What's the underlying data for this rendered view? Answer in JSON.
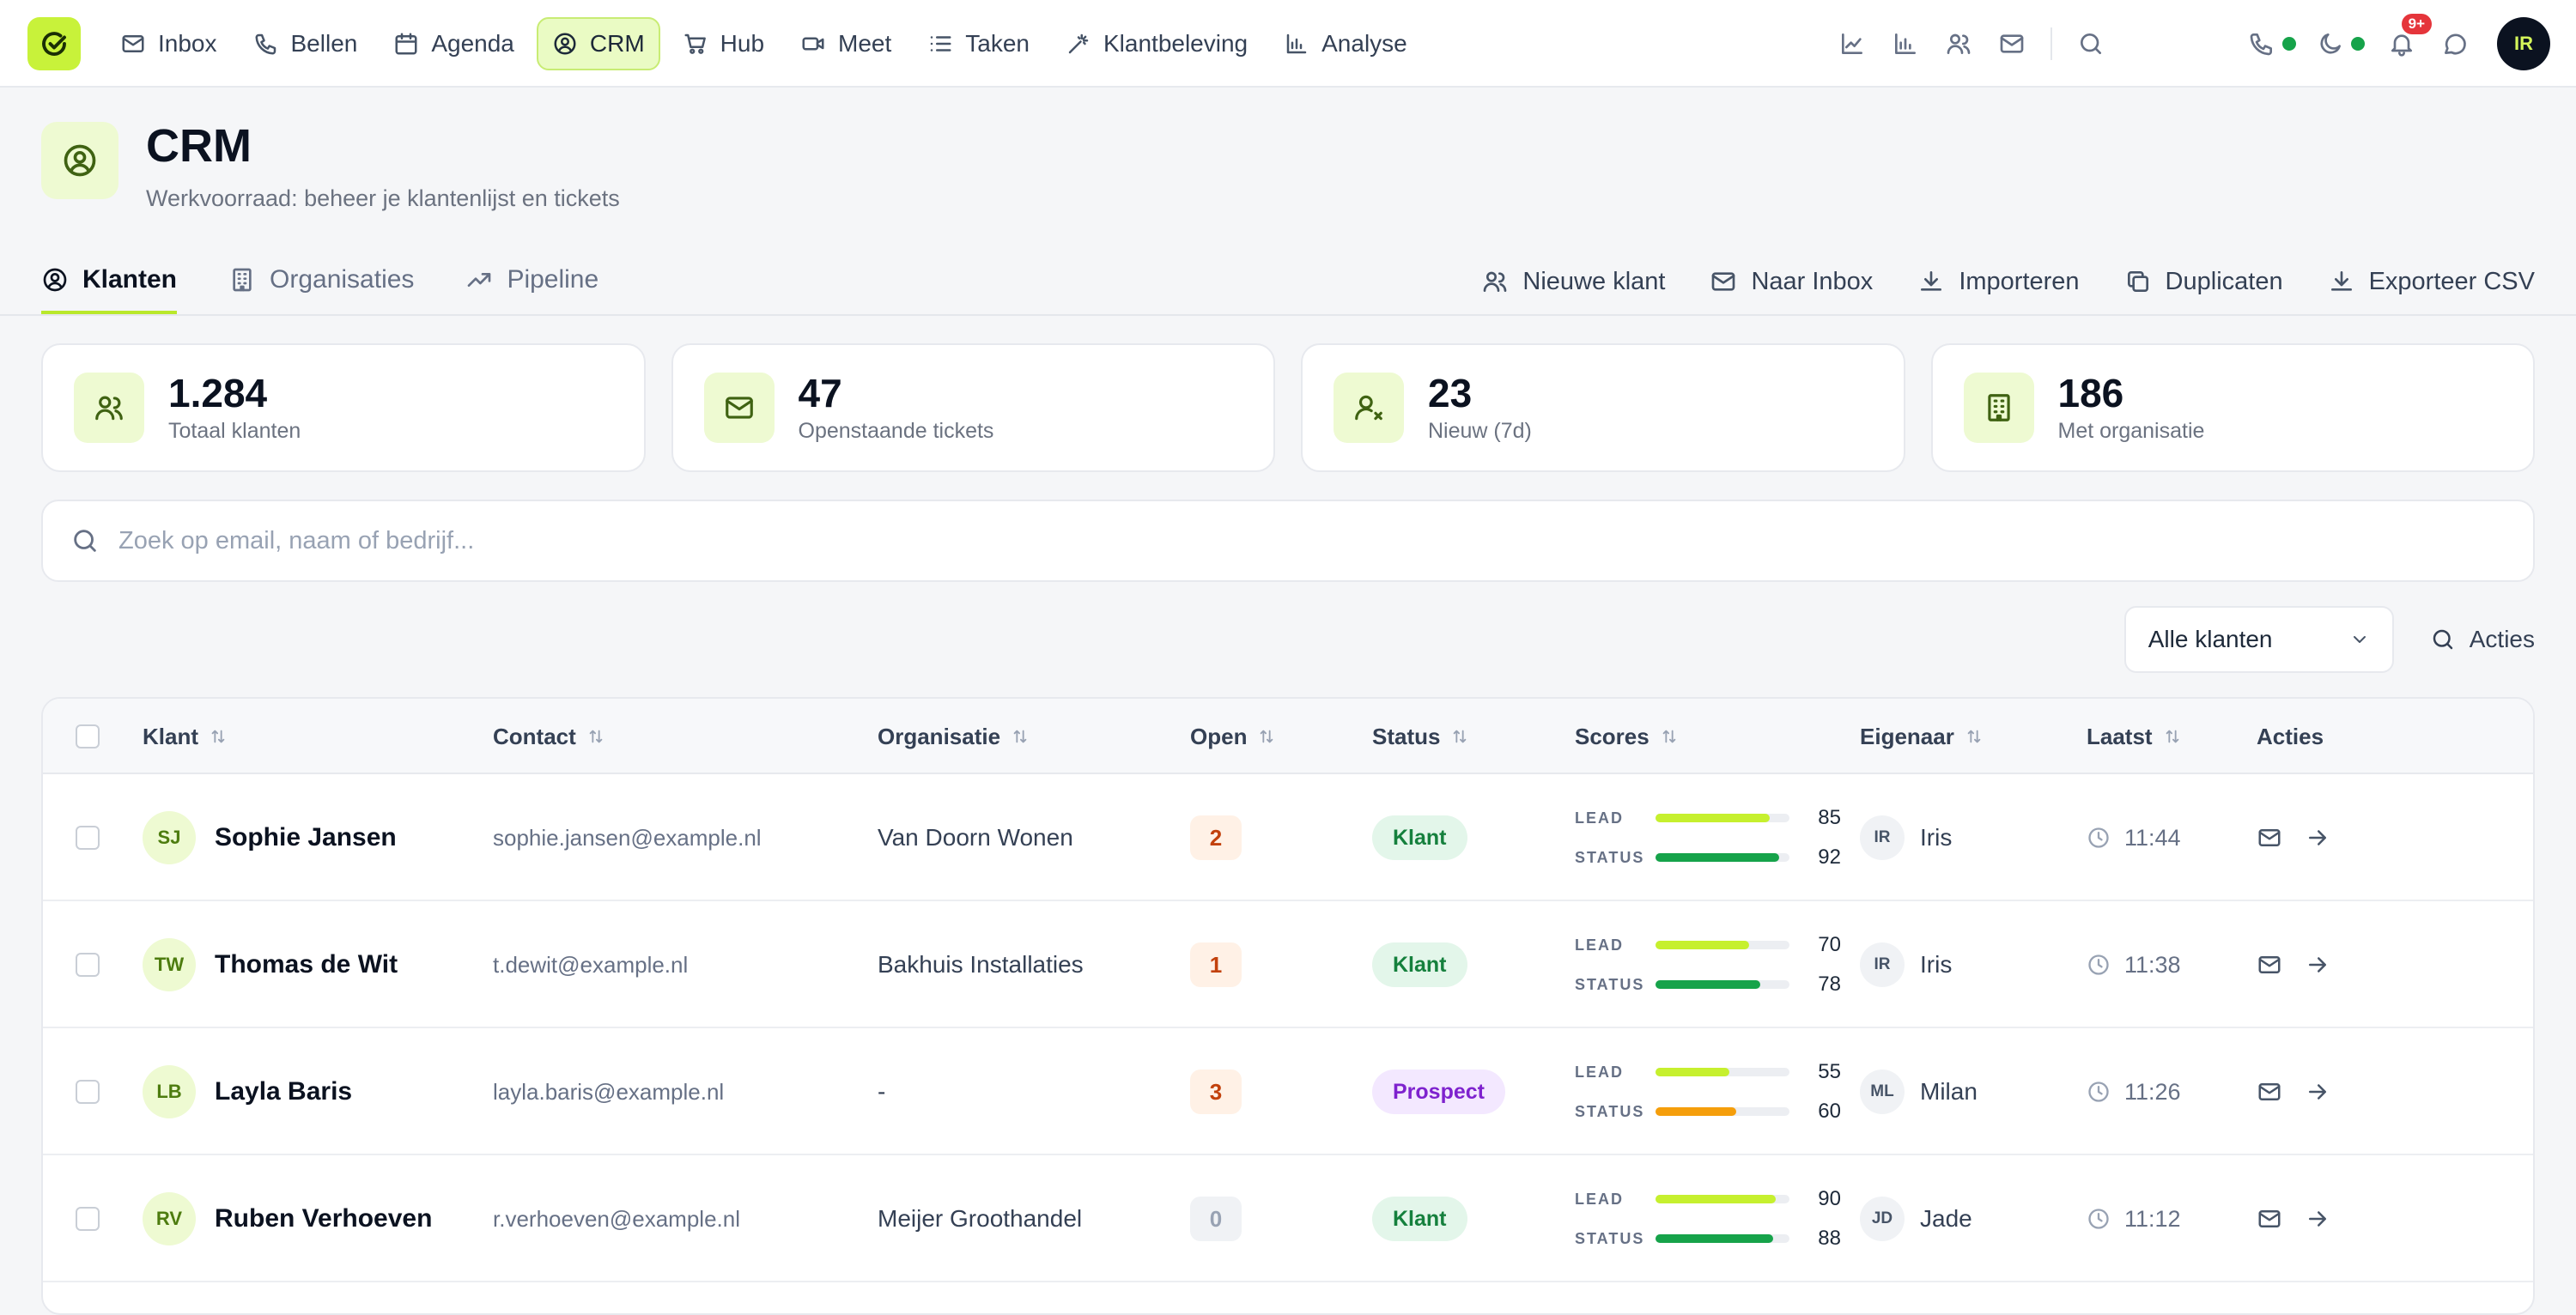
{
  "nav": {
    "items": [
      {
        "label": "Inbox",
        "icon": "mail-icon"
      },
      {
        "label": "Bellen",
        "icon": "phone-icon"
      },
      {
        "label": "Agenda",
        "icon": "calendar-icon"
      },
      {
        "label": "CRM",
        "icon": "user-circle-icon",
        "active": true
      },
      {
        "label": "Hub",
        "icon": "cart-icon"
      },
      {
        "label": "Meet",
        "icon": "video-icon"
      },
      {
        "label": "Taken",
        "icon": "list-icon"
      },
      {
        "label": "Klantbeleving",
        "icon": "wand-icon"
      },
      {
        "label": "Analyse",
        "icon": "bar-chart-icon"
      }
    ],
    "notification_count": "9+",
    "user_initials": "IR"
  },
  "header": {
    "title": "CRM",
    "subtitle": "Werkvoorraad: beheer je klantenlijst en tickets"
  },
  "tabs": [
    {
      "label": "Klanten",
      "active": true
    },
    {
      "label": "Organisaties"
    },
    {
      "label": "Pipeline"
    }
  ],
  "actions": [
    {
      "label": "Nieuwe klant"
    },
    {
      "label": "Naar Inbox"
    },
    {
      "label": "Importeren"
    },
    {
      "label": "Duplicaten"
    },
    {
      "label": "Exporteer CSV"
    }
  ],
  "stats": [
    {
      "value": "1.284",
      "label": "Totaal klanten"
    },
    {
      "value": "47",
      "label": "Openstaande tickets"
    },
    {
      "value": "23",
      "label": "Nieuw (7d)"
    },
    {
      "value": "186",
      "label": "Met organisatie"
    }
  ],
  "search": {
    "placeholder": "Zoek op email, naam of bedrijf..."
  },
  "filter": {
    "selected": "Alle klanten",
    "actions_label": "Acties"
  },
  "table": {
    "columns": [
      "Klant",
      "Contact",
      "Organisatie",
      "Open",
      "Status",
      "Scores",
      "Eigenaar",
      "Laatst",
      "Acties"
    ],
    "score_labels": {
      "lead": "LEAD",
      "status": "STATUS"
    },
    "rows": [
      {
        "initials": "SJ",
        "name": "Sophie Jansen",
        "email": "sophie.jansen@example.nl",
        "org": "Van Doorn Wonen",
        "open": "2",
        "status": "Klant",
        "lead": 85,
        "status_score": 92,
        "owner_initials": "IR",
        "owner": "Iris",
        "last": "11:44"
      },
      {
        "initials": "TW",
        "name": "Thomas de Wit",
        "email": "t.dewit@example.nl",
        "org": "Bakhuis Installaties",
        "open": "1",
        "status": "Klant",
        "lead": 70,
        "status_score": 78,
        "owner_initials": "IR",
        "owner": "Iris",
        "last": "11:38"
      },
      {
        "initials": "LB",
        "name": "Layla Baris",
        "email": "layla.baris@example.nl",
        "org": "-",
        "open": "3",
        "status": "Prospect",
        "lead": 55,
        "status_score": 60,
        "owner_initials": "ML",
        "owner": "Milan",
        "last": "11:26"
      },
      {
        "initials": "RV",
        "name": "Ruben Verhoeven",
        "email": "r.verhoeven@example.nl",
        "org": "Meijer Groothandel",
        "open": "0",
        "status": "Klant",
        "lead": 90,
        "status_score": 88,
        "owner_initials": "JD",
        "owner": "Jade",
        "last": "11:12"
      }
    ]
  },
  "colors": {
    "accent": "#c8f23a",
    "lead_bar": "#c6f02e",
    "status_bar_good": "#16a34a",
    "status_bar_warn": "#f59e0b"
  }
}
